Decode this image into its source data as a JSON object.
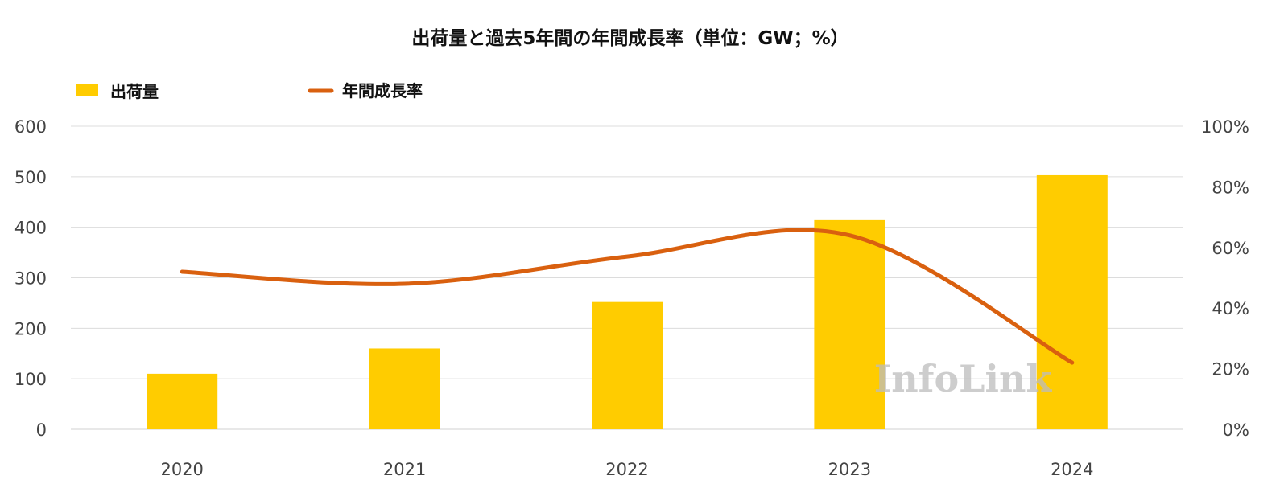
{
  "chart_data": {
    "type": "bar",
    "title": "出荷量と過去5年間の年間成長率（単位：GW；%）",
    "categories": [
      "2020",
      "2021",
      "2022",
      "2023",
      "2024"
    ],
    "series": [
      {
        "name": "出荷量",
        "type": "bar",
        "axis": "left",
        "color": "#FFCC00",
        "values": [
          110,
          160,
          252,
          414,
          503
        ]
      },
      {
        "name": "年間成長率",
        "type": "line",
        "axis": "right",
        "color": "#D9600F",
        "values": [
          52,
          48,
          57,
          64,
          22
        ]
      }
    ],
    "ylim_left": [
      0,
      600
    ],
    "ylim_right": [
      0,
      100
    ],
    "yticks_left": [
      "0",
      "100",
      "200",
      "300",
      "400",
      "500",
      "600"
    ],
    "yticks_right": [
      "0%",
      "20%",
      "40%",
      "60%",
      "80%",
      "100%"
    ],
    "grid": true,
    "legend_position": "top-left",
    "watermark": "InfoLink"
  }
}
